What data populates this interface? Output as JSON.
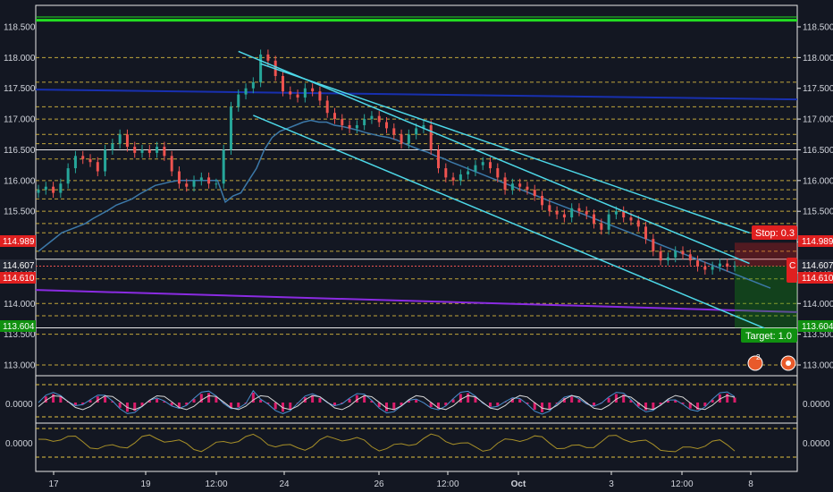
{
  "colors": {
    "background": "#131722",
    "up": "#26a69a",
    "down": "#ef5350",
    "text": "#d1d4dc",
    "gridline": "#e0c040",
    "channel": "#4dd8e8",
    "ma": "#3c78a8",
    "green_line": "#22dd22",
    "blue_line": "#1830b0",
    "purple_line": "#8a2be2",
    "stop": "#e02020",
    "target": "#109010",
    "osc_pos": "#ff1e78"
  },
  "price_axis": {
    "ticks": [
      "118.500",
      "118.000",
      "117.500",
      "117.000",
      "116.500",
      "116.000",
      "115.500",
      "115.000",
      "114.500",
      "114.000",
      "113.500",
      "113.000"
    ],
    "tick_values": [
      118.5,
      118.0,
      117.5,
      117.0,
      116.5,
      116.0,
      115.5,
      115.0,
      114.5,
      114.0,
      113.5,
      113.0
    ]
  },
  "time_axis": {
    "labels": [
      "17",
      "19",
      "12:00",
      "24",
      "26",
      "12:00",
      "Oct",
      "3",
      "12:00",
      "8"
    ]
  },
  "badges": {
    "stop_price": "114.989",
    "current_price": "114.607",
    "entry_price": "114.610",
    "target_price": "113.604"
  },
  "position": {
    "stop_label": "Stop: 0.3",
    "target_label": "Target: 1.0",
    "entry_label": "C"
  },
  "indicators": {
    "osc1_label": "0.0000",
    "osc2_label": "0.0000"
  },
  "events": {
    "flag1_count": "2"
  },
  "chart_data": {
    "type": "candlestick",
    "ylim": [
      112.8,
      118.8
    ],
    "horizontal_levels": [
      118.6,
      117.45,
      114.989,
      114.607,
      114.61,
      113.604
    ],
    "dashed_levels": [
      118.0,
      117.6,
      117.2,
      117.0,
      116.75,
      116.6,
      116.35,
      116.0,
      115.85,
      115.7,
      115.5,
      115.3,
      115.15,
      114.85,
      114.4,
      114.0,
      113.8,
      113.5,
      113.0
    ],
    "channel_lines": [
      {
        "from": {
          "t": 27,
          "p": 118.1
        },
        "to": {
          "t": 96,
          "p": 114.65
        }
      },
      {
        "from": {
          "t": 29,
          "p": 117.06
        },
        "to": {
          "t": 98,
          "p": 113.6
        }
      },
      {
        "from": {
          "t": 30,
          "p": 117.9
        },
        "to": {
          "t": 96,
          "p": 115.15
        }
      }
    ],
    "close_series": [
      115.85,
      115.9,
      115.8,
      115.95,
      116.2,
      116.4,
      116.35,
      116.3,
      116.15,
      116.5,
      116.6,
      116.75,
      116.55,
      116.45,
      116.5,
      116.45,
      116.55,
      116.4,
      116.15,
      115.95,
      115.9,
      116.0,
      116.05,
      115.95,
      115.95,
      116.5,
      117.2,
      117.4,
      117.5,
      117.6,
      118.05,
      117.95,
      117.7,
      117.45,
      117.4,
      117.35,
      117.5,
      117.45,
      117.3,
      117.1,
      117.0,
      116.9,
      116.85,
      116.9,
      117.0,
      117.05,
      116.95,
      116.85,
      116.75,
      116.6,
      116.75,
      116.85,
      116.9,
      116.5,
      116.2,
      116.05,
      116.0,
      116.1,
      116.15,
      116.25,
      116.3,
      116.2,
      116.05,
      115.85,
      115.95,
      115.9,
      115.85,
      115.75,
      115.6,
      115.5,
      115.45,
      115.4,
      115.55,
      115.5,
      115.45,
      115.3,
      115.2,
      115.45,
      115.5,
      115.4,
      115.35,
      115.25,
      115.05,
      114.85,
      114.7,
      114.75,
      114.85,
      114.8,
      114.7,
      114.6,
      114.55,
      114.6,
      114.65,
      114.6,
      114.61
    ],
    "ma_series": [
      114.85,
      114.95,
      115.05,
      115.15,
      115.2,
      115.25,
      115.3,
      115.38,
      115.45,
      115.52,
      115.6,
      115.65,
      115.7,
      115.78,
      115.85,
      115.92,
      115.95,
      115.98,
      116.0,
      116.0,
      116.0,
      116.0,
      116.0,
      116.0,
      115.65,
      115.75,
      115.8,
      116.0,
      116.2,
      116.5,
      116.7,
      116.8,
      116.85,
      116.9,
      116.95,
      116.98,
      116.95,
      116.95,
      116.9,
      116.88,
      116.85,
      116.82,
      116.78,
      116.75,
      116.72,
      116.7,
      116.66,
      116.6,
      116.55,
      116.5,
      116.46,
      116.4,
      116.36,
      116.3,
      116.25,
      116.2,
      116.15,
      116.1,
      116.05,
      116.0,
      115.95,
      115.9,
      115.85,
      115.8,
      115.75,
      115.7,
      115.65,
      115.6,
      115.55,
      115.5,
      115.45,
      115.4,
      115.35,
      115.3,
      115.25,
      115.2,
      115.15,
      115.1,
      115.05,
      115.0,
      114.95,
      114.9,
      114.85,
      114.8,
      114.75,
      114.7,
      114.65,
      114.6,
      114.55,
      114.5,
      114.45,
      114.4,
      114.35,
      114.3,
      114.25
    ]
  }
}
